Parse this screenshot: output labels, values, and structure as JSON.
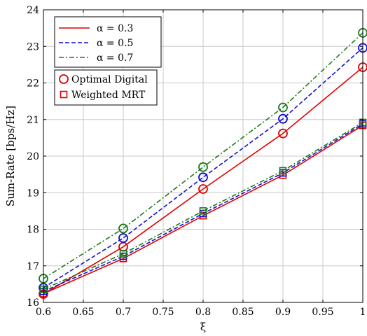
{
  "chart_data": {
    "type": "line",
    "xlabel": "ξ",
    "ylabel": "Sum-Rate [bps/Hz]",
    "xlim": [
      0.6,
      1.0
    ],
    "ylim": [
      16,
      24
    ],
    "xticks": [
      0.6,
      0.65,
      0.7,
      0.75,
      0.8,
      0.85,
      0.9,
      0.95,
      1.0
    ],
    "xtick_labels": [
      "0.6",
      "0.65",
      "0.7",
      "0.75",
      "0.8",
      "0.85",
      "0.9",
      "0.95",
      "1"
    ],
    "yticks": [
      16,
      17,
      18,
      19,
      20,
      21,
      22,
      23,
      24
    ],
    "ytick_labels": [
      "16",
      "17",
      "18",
      "19",
      "20",
      "21",
      "22",
      "23",
      "24"
    ],
    "grid": true,
    "x": [
      0.6,
      0.7,
      0.8,
      0.9,
      1.0
    ],
    "series": [
      {
        "name": "α = 0.3",
        "method": "Optimal Digital",
        "color": "#e00000",
        "dash": "solid",
        "marker": "circle",
        "values": [
          16.23,
          17.52,
          19.1,
          20.62,
          22.43
        ]
      },
      {
        "name": "α = 0.5",
        "method": "Optimal Digital",
        "color": "#1010d0",
        "dash": "dashed",
        "marker": "circle",
        "values": [
          16.4,
          17.76,
          19.42,
          21.02,
          22.96
        ]
      },
      {
        "name": "α = 0.7",
        "method": "Optimal Digital",
        "color": "#1a7a1a",
        "dash": "dashdot",
        "marker": "circle",
        "values": [
          16.65,
          18.02,
          19.7,
          21.33,
          23.37
        ]
      },
      {
        "name": "α = 0.3",
        "method": "Weighted MRT",
        "color": "#e00000",
        "dash": "solid",
        "marker": "square",
        "values": [
          16.24,
          17.2,
          18.37,
          19.48,
          20.84
        ]
      },
      {
        "name": "α = 0.5",
        "method": "Weighted MRT",
        "color": "#1010d0",
        "dash": "dashed",
        "marker": "square",
        "values": [
          16.3,
          17.26,
          18.43,
          19.54,
          20.88
        ]
      },
      {
        "name": "α = 0.7",
        "method": "Weighted MRT",
        "color": "#1a7a1a",
        "dash": "dashdot",
        "marker": "square",
        "values": [
          16.36,
          17.33,
          18.5,
          19.6,
          20.92
        ]
      }
    ],
    "legend_lines": {
      "placement": "top-left",
      "entries": [
        {
          "label": "α = 0.3",
          "color": "#e00000",
          "dash": "solid"
        },
        {
          "label": "α = 0.5",
          "color": "#1010d0",
          "dash": "dashed"
        },
        {
          "label": "α = 0.7",
          "color": "#1a7a1a",
          "dash": "dashdot"
        }
      ]
    },
    "legend_markers": {
      "placement": "top-left",
      "entries": [
        {
          "label": "Optimal Digital",
          "marker": "circle",
          "color": "#e00000"
        },
        {
          "label": "Weighted MRT",
          "marker": "square",
          "color": "#e00000"
        }
      ]
    }
  }
}
